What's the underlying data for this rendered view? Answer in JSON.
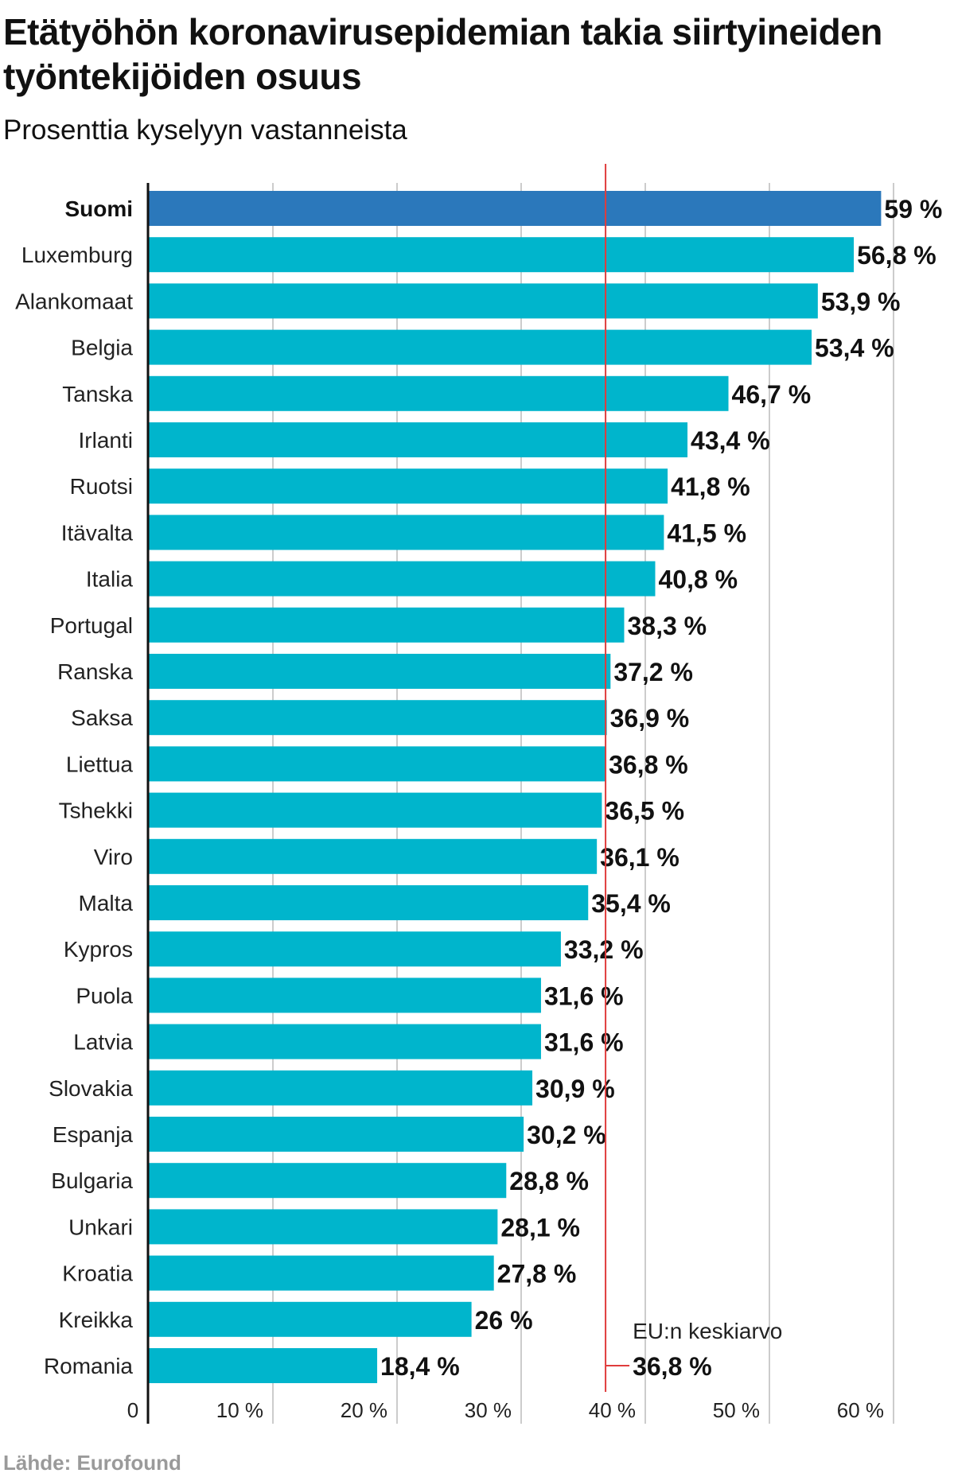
{
  "title": "Etätyöhön koronavirusepidemian takia siirtyineiden työntekijöiden osuus",
  "subtitle": "Prosenttia kyselyyn vastanneista",
  "source": "Lähde: Eurofound",
  "colors": {
    "bar": "#00b5cc",
    "highlight": "#2b78bb",
    "reference": "#e03c3c",
    "grid": "#cccccc",
    "axis": "#111111"
  },
  "chart_data": {
    "type": "bar",
    "orientation": "horizontal",
    "categories": [
      "Suomi",
      "Luxemburg",
      "Alankomaat",
      "Belgia",
      "Tanska",
      "Irlanti",
      "Ruotsi",
      "Itävalta",
      "Italia",
      "Portugal",
      "Ranska",
      "Saksa",
      "Liettua",
      "Tshekki",
      "Viro",
      "Malta",
      "Kypros",
      "Puola",
      "Latvia",
      "Slovakia",
      "Espanja",
      "Bulgaria",
      "Unkari",
      "Kroatia",
      "Kreikka",
      "Romania"
    ],
    "values": [
      59,
      56.8,
      53.9,
      53.4,
      46.7,
      43.4,
      41.8,
      41.5,
      40.8,
      38.3,
      37.2,
      36.9,
      36.8,
      36.5,
      36.1,
      35.4,
      33.2,
      31.6,
      31.6,
      30.9,
      30.2,
      28.8,
      28.1,
      27.8,
      26,
      18.4
    ],
    "value_labels": [
      "59 %",
      "56,8 %",
      "53,9 %",
      "53,4 %",
      "46,7 %",
      "43,4 %",
      "41,8 %",
      "41,5 %",
      "40,8 %",
      "38,3 %",
      "37,2 %",
      "36,9 %",
      "36,8 %",
      "36,5 %",
      "36,1 %",
      "35,4 %",
      "33,2 %",
      "31,6 %",
      "31,6 %",
      "30,9 %",
      "30,2 %",
      "28,8 %",
      "28,1 %",
      "27,8 %",
      "26 %",
      "18,4 %"
    ],
    "highlight": "Suomi",
    "xlim": [
      0,
      60
    ],
    "ticks": [
      0,
      10,
      20,
      30,
      40,
      50,
      60
    ],
    "tick_labels": [
      "0",
      "10 %",
      "20 %",
      "30 %",
      "40 %",
      "50 %",
      "60 %"
    ],
    "grid": true,
    "reference_line": {
      "value": 36.8,
      "label": "EU:n keskiarvo",
      "value_label": "36,8 %"
    }
  }
}
